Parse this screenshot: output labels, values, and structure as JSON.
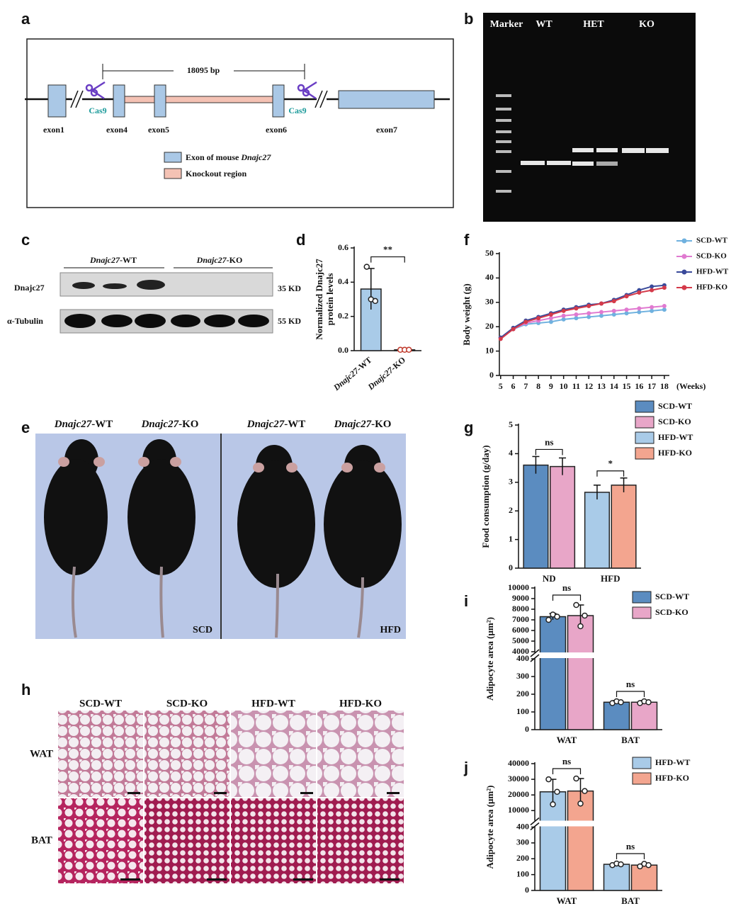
{
  "panel_labels": [
    "a",
    "b",
    "c",
    "d",
    "e",
    "f",
    "g",
    "h",
    "i",
    "j"
  ],
  "diagram_a": {
    "distance": "18095 bp",
    "cas9": [
      "Cas9",
      "Cas9"
    ],
    "exons": [
      "exon1",
      "exon4",
      "exon5",
      "exon6",
      "exon7"
    ],
    "legend": [
      {
        "text": "Exon of  mouse ",
        "gene": "Dnajc27"
      },
      "Knockout region"
    ]
  },
  "gel_b": {
    "lanes": [
      "Marker",
      "WT",
      "HET",
      "KO"
    ]
  },
  "blot_c": {
    "groups": [
      "Dnajc27-WT",
      "Dnajc27-KO"
    ],
    "rows": [
      "Dnajc27",
      "α-Tubulin"
    ],
    "sizes": [
      "35 KD",
      "55 KD"
    ]
  },
  "photo_e": {
    "headings": [
      "Dnajc27-WT",
      "Dnajc27-KO",
      "Dnajc27-WT",
      "Dnajc27-KO"
    ],
    "diets": [
      "SCD",
      "HFD"
    ]
  },
  "histology_h": {
    "columns": [
      "SCD-WT",
      "SCD-KO",
      "HFD-WT",
      "HFD-KO"
    ],
    "rows": [
      "WAT",
      "BAT"
    ]
  },
  "chart_data": [
    {
      "type": "bar",
      "ylabel": [
        "Normalized Dnajc27",
        "protein levels"
      ],
      "categories": [
        "Dnajc27-WT",
        "Dnajc27-KO"
      ],
      "values": [
        0.36,
        0.005
      ],
      "errors": [
        0.12,
        0.005
      ],
      "points": [
        [
          0.49,
          0.3,
          0.29
        ],
        [
          0.005,
          0.005,
          0.005
        ]
      ],
      "colors": [
        "#a9cbe8",
        "#f3a58f"
      ],
      "annotations": [
        "**"
      ],
      "ylim": [
        0,
        0.6
      ],
      "yticks": [
        {
          "value": 0,
          "label": "0.0"
        },
        {
          "value": 0.2,
          "label": "0.2"
        },
        {
          "value": 0.4,
          "label": "0.4"
        },
        {
          "value": 0.6,
          "label": "0.6"
        }
      ]
    },
    {
      "type": "line",
      "ylabel": "Body weight (g)",
      "xlabel": "(Weeks)",
      "x": [
        5,
        6,
        7,
        8,
        9,
        10,
        11,
        12,
        13,
        14,
        15,
        16,
        17,
        18
      ],
      "xlim": [
        4.9,
        18.4
      ],
      "xticks": [
        5,
        6,
        7,
        8,
        9,
        10,
        11,
        12,
        13,
        14,
        15,
        16,
        17,
        18
      ],
      "ylim": [
        0,
        50
      ],
      "yticks": [
        0,
        10,
        20,
        30,
        40,
        50
      ],
      "legend": "top-right",
      "series": [
        {
          "name": "SCD-WT",
          "color": "#6fb1df",
          "values": [
            15.5,
            19,
            21,
            21.5,
            22,
            23,
            23.5,
            24,
            24.5,
            25,
            25.5,
            26,
            26.5,
            27
          ]
        },
        {
          "name": "SCD-KO",
          "color": "#e07ad0",
          "values": [
            15.5,
            19,
            21.5,
            22.5,
            23.5,
            24.5,
            25,
            25.5,
            26,
            26.5,
            27,
            27.5,
            28,
            28.5
          ]
        },
        {
          "name": "HFD-WT",
          "color": "#3a4a9a",
          "values": [
            15.5,
            19.5,
            22.5,
            24,
            25.5,
            27,
            28,
            29,
            29.5,
            31,
            33,
            35,
            36.5,
            37
          ]
        },
        {
          "name": "HFD-KO",
          "color": "#d43a4a",
          "values": [
            15,
            19,
            22,
            23.5,
            25,
            26.5,
            27.5,
            28.5,
            29.5,
            30.5,
            32.5,
            34,
            35,
            36
          ]
        }
      ]
    },
    {
      "type": "bar",
      "ylabel": "Food consumption (g/day)",
      "categories": [
        "ND",
        "HFD"
      ],
      "ylim": [
        0,
        5
      ],
      "yticks": [
        0,
        1,
        2,
        3,
        4,
        5
      ],
      "annotations": [
        "ns",
        "*"
      ],
      "legend": "top-right",
      "series": [
        {
          "name": "SCD-WT",
          "color": "#5b8cc0",
          "values": [
            3.6,
            null
          ],
          "errors": [
            0.3,
            null
          ]
        },
        {
          "name": "SCD-KO",
          "color": "#e8a6c8",
          "values": [
            3.55,
            null
          ],
          "errors": [
            0.3,
            null
          ]
        },
        {
          "name": "HFD-WT",
          "color": "#a9cbe8",
          "values": [
            null,
            2.65
          ],
          "errors": [
            null,
            0.25
          ]
        },
        {
          "name": "HFD-KO",
          "color": "#f3a58f",
          "values": [
            null,
            2.9
          ],
          "errors": [
            null,
            0.25
          ]
        }
      ]
    },
    {
      "type": "bar",
      "ylabel": "Adipocyte area (μm²)",
      "categories": [
        "WAT",
        "BAT"
      ],
      "ylim": [
        0,
        10000
      ],
      "axis_break": [
        400,
        4000
      ],
      "yticks": [
        0,
        100,
        200,
        300,
        400,
        4000,
        5000,
        6000,
        7000,
        8000,
        9000,
        10000
      ],
      "annotations": [
        "ns",
        "ns"
      ],
      "legend": "top-right",
      "series": [
        {
          "name": "SCD-WT",
          "color": "#5b8cc0",
          "values": [
            7300,
            155
          ],
          "errors": [
            300,
            10
          ],
          "points": [
            [
              7000,
              7500,
              7300
            ],
            [
              150,
              160,
              155
            ]
          ]
        },
        {
          "name": "SCD-KO",
          "color": "#e8a6c8",
          "values": [
            7400,
            155
          ],
          "errors": [
            1000,
            10
          ],
          "points": [
            [
              8400,
              6400,
              7400
            ],
            [
              150,
              160,
              155
            ]
          ]
        }
      ]
    },
    {
      "type": "bar",
      "ylabel": "Adipocyte area (μm²)",
      "categories": [
        "WAT",
        "BAT"
      ],
      "ylim": [
        0,
        40000
      ],
      "axis_break": [
        400,
        4000
      ],
      "yticks": [
        0,
        100,
        200,
        300,
        400,
        10000,
        20000,
        30000,
        40000
      ],
      "annotations": [
        "ns",
        "ns"
      ],
      "legend": "top-right",
      "series": [
        {
          "name": "HFD-WT",
          "color": "#a9cbe8",
          "values": [
            22000,
            165
          ],
          "errors": [
            8000,
            5
          ],
          "points": [
            [
              30000,
              14000,
              22000
            ],
            [
              160,
              170,
              165
            ]
          ]
        },
        {
          "name": "HFD-KO",
          "color": "#f3a58f",
          "values": [
            22500,
            160
          ],
          "errors": [
            8000,
            8
          ],
          "points": [
            [
              30500,
              14500,
              22500
            ],
            [
              152,
              168,
              160
            ]
          ]
        }
      ]
    }
  ]
}
